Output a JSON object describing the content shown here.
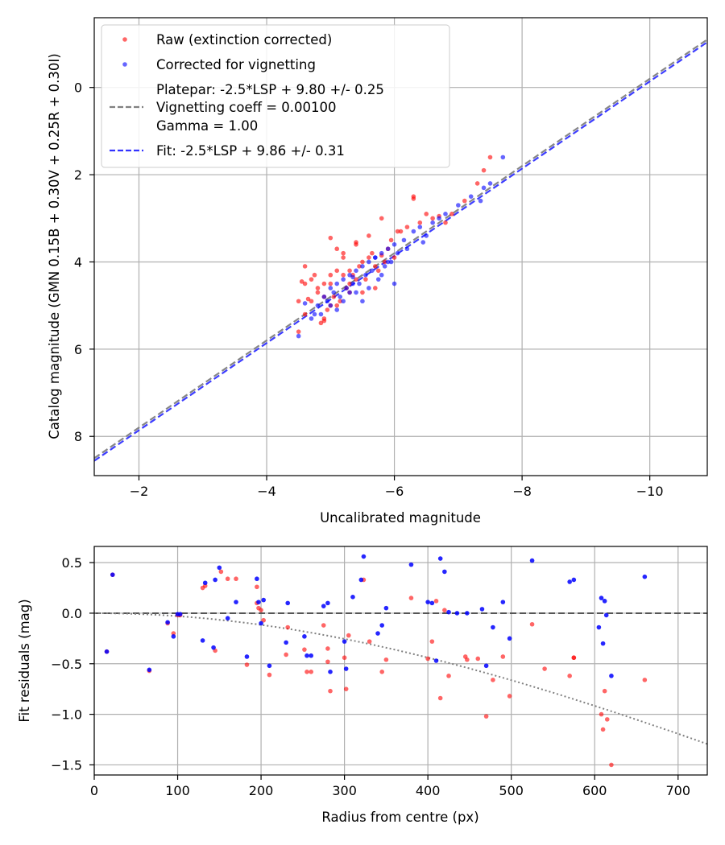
{
  "chart_data": [
    {
      "type": "scatter",
      "xlabel": "Uncalibrated magnitude",
      "ylabel": "Catalog magnitude (GMN 0.15B + 0.30V + 0.25R + 0.30I)",
      "xlim": [
        -1.3,
        -10.9
      ],
      "ylim": [
        8.9,
        -1.6
      ],
      "grid": true,
      "x_ticks": [
        -2,
        -4,
        -6,
        -8,
        -10
      ],
      "x_tick_labels": [
        "−2",
        "−4",
        "−6",
        "−8",
        "−10"
      ],
      "y_ticks": [
        0,
        2,
        4,
        6,
        8
      ],
      "y_tick_labels": [
        "0",
        "2",
        "4",
        "6",
        "8"
      ],
      "legend_location": "upper-left",
      "legend": [
        {
          "label": "Raw (extinction corrected)",
          "kind": "marker",
          "color": "#ff0000"
        },
        {
          "label": "Corrected for vignetting",
          "kind": "marker",
          "color": "#0000ff"
        },
        {
          "label": "Platepar: -2.5*LSP + 9.80 +/- 0.25",
          "kind": "line",
          "color": "#808080"
        },
        {
          "label": "Vignetting coeff = 0.00100",
          "kind": "text"
        },
        {
          "label": "Gamma = 1.00",
          "kind": "text"
        },
        {
          "label": "Fit: -2.5*LSP + 9.86 +/- 0.31",
          "kind": "line",
          "color": "#3333ff"
        }
      ],
      "lines": [
        {
          "name": "Platepar",
          "slope": 1.0,
          "intercept": 9.8,
          "color": "#808080"
        },
        {
          "name": "Fit",
          "slope": 1.0,
          "intercept": 9.86,
          "color": "#3333ff"
        }
      ],
      "series": [
        {
          "name": "Raw (extinction corrected)",
          "color": "#ff0000",
          "x": [
            -4.5,
            -4.6,
            -4.7,
            -4.8,
            -4.9,
            -5.0,
            -4.6,
            -4.7,
            -4.8,
            -4.9,
            -5.0,
            -5.1,
            -5.2,
            -5.3,
            -4.5,
            -4.6,
            -4.9,
            -5.1,
            -5.3,
            -5.4,
            -5.5,
            -5.6,
            -5.7,
            -5.2,
            -5.3,
            -5.4,
            -5.0,
            -5.1,
            -4.85,
            -4.95,
            -5.05,
            -5.15,
            -5.25,
            -5.35,
            -5.45,
            -5.55,
            -5.65,
            -5.75,
            -5.85,
            -5.95,
            -6.05,
            -5.6,
            -5.8,
            -6.1,
            -6.2,
            -6.4,
            -6.5,
            -6.6,
            -6.9,
            -7.1,
            -7.3,
            -7.4,
            -7.5,
            -6.3,
            -6.8,
            -5.7,
            -5.9,
            -6.0,
            -5.5,
            -4.75,
            -4.55,
            -4.65,
            -5.0,
            -5.2,
            -5.4,
            -5.8,
            -6.3,
            -6.7,
            -4.9
          ],
          "y": [
            5.6,
            5.2,
            4.9,
            4.7,
            4.5,
            4.3,
            4.1,
            4.4,
            4.6,
            4.8,
            5.0,
            4.2,
            4.3,
            4.5,
            4.9,
            4.5,
            5.3,
            5.0,
            4.2,
            4.4,
            4.0,
            3.9,
            4.1,
            3.8,
            4.7,
            3.6,
            4.5,
            3.7,
            5.4,
            5.1,
            4.8,
            4.9,
            4.6,
            4.3,
            4.1,
            4.4,
            3.8,
            4.2,
            4.0,
            3.5,
            3.3,
            3.4,
            3.0,
            3.3,
            3.2,
            3.1,
            2.9,
            3.0,
            2.9,
            2.6,
            2.2,
            1.9,
            1.6,
            2.5,
            3.1,
            4.6,
            3.7,
            3.9,
            4.7,
            4.3,
            4.45,
            4.85,
            3.45,
            3.9,
            3.55,
            3.85,
            2.55,
            2.95,
            5.35
          ]
        },
        {
          "name": "Corrected for vignetting",
          "color": "#0000ff",
          "x": [
            -4.5,
            -4.7,
            -4.8,
            -4.9,
            -5.0,
            -5.1,
            -5.2,
            -5.3,
            -5.4,
            -5.5,
            -5.6,
            -5.7,
            -5.8,
            -5.9,
            -6.0,
            -4.85,
            -4.95,
            -5.05,
            -5.15,
            -5.25,
            -5.35,
            -5.45,
            -5.55,
            -5.65,
            -5.75,
            -5.85,
            -5.95,
            -6.05,
            -6.15,
            -6.3,
            -6.4,
            -6.5,
            -6.6,
            -6.7,
            -6.8,
            -7.0,
            -7.2,
            -7.4,
            -7.5,
            -7.7,
            -5.0,
            -5.2,
            -5.4,
            -5.6,
            -5.8,
            -6.0,
            -5.1,
            -5.3,
            -5.5,
            -5.7,
            -5.9,
            -4.6,
            -4.75,
            -5.35,
            -6.2,
            -6.45,
            -7.35
          ],
          "y": [
            5.7,
            5.3,
            5.0,
            4.8,
            4.6,
            4.5,
            4.4,
            4.3,
            4.2,
            4.1,
            4.0,
            3.9,
            3.8,
            3.7,
            3.6,
            5.2,
            4.9,
            4.7,
            4.8,
            4.6,
            4.5,
            4.5,
            4.3,
            4.2,
            4.4,
            4.1,
            4.0,
            3.8,
            3.5,
            3.3,
            3.2,
            3.4,
            3.1,
            3.0,
            2.9,
            2.7,
            2.5,
            2.3,
            2.2,
            1.6,
            5.0,
            4.9,
            4.7,
            4.6,
            4.3,
            4.5,
            5.1,
            4.7,
            4.9,
            3.9,
            4.0,
            4.95,
            5.2,
            4.35,
            3.7,
            3.55,
            2.6
          ]
        }
      ]
    },
    {
      "type": "scatter",
      "xlabel": "Radius from centre (px)",
      "ylabel": "Fit residuals (mag)",
      "xlim": [
        0,
        735
      ],
      "ylim": [
        -1.6,
        0.66
      ],
      "grid": true,
      "x_ticks": [
        0,
        100,
        200,
        300,
        400,
        500,
        600,
        700
      ],
      "x_tick_labels": [
        "0",
        "100",
        "200",
        "300",
        "400",
        "500",
        "600",
        "700"
      ],
      "y_ticks": [
        0.5,
        0.0,
        -0.5,
        -1.0,
        -1.5
      ],
      "y_tick_labels": [
        "0.5",
        "0.0",
        "−0.5",
        "−1.0",
        "−1.5"
      ],
      "lines": [
        {
          "name": "zero",
          "kind": "dashed",
          "color": "#555555",
          "y": 0.0
        },
        {
          "name": "vignetting model",
          "kind": "dotted",
          "color": "#808080",
          "coeff": 0.001
        }
      ],
      "series": [
        {
          "name": "Raw (extinction corrected)",
          "color": "#ff0000",
          "x": [
            15,
            22,
            66,
            88,
            95,
            100,
            103,
            130,
            133,
            145,
            152,
            160,
            170,
            183,
            195,
            195,
            197,
            200,
            203,
            210,
            230,
            232,
            252,
            255,
            260,
            275,
            280,
            283,
            302,
            323,
            330,
            350,
            380,
            405,
            415,
            420,
            425,
            445,
            447,
            470,
            478,
            490,
            498,
            525,
            575,
            608,
            610,
            612,
            615,
            620,
            660,
            570,
            575,
            280,
            300,
            305,
            345,
            400,
            410,
            460,
            540
          ],
          "x2": [],
          "y": [
            -0.38,
            0.38,
            -0.57,
            -0.1,
            -0.2,
            -0.02,
            -0.02,
            0.25,
            0.27,
            -0.37,
            0.41,
            0.34,
            0.34,
            -0.51,
            0.26,
            0.1,
            0.05,
            0.03,
            -0.07,
            -0.61,
            -0.41,
            -0.14,
            -0.36,
            -0.58,
            -0.58,
            -0.12,
            -0.48,
            -0.77,
            -0.75,
            0.33,
            -0.28,
            -0.46,
            0.15,
            -0.28,
            -0.84,
            0.03,
            -0.62,
            -0.43,
            -0.46,
            -1.02,
            -0.66,
            -0.43,
            -0.82,
            -0.11,
            -0.44,
            -1.0,
            -1.15,
            -0.77,
            -1.05,
            -1.5,
            -0.66,
            -0.62,
            -0.44,
            -0.35,
            -0.44,
            -0.22,
            -0.58,
            -0.45,
            0.12,
            -0.45,
            -0.55
          ]
        },
        {
          "name": "Corrected for vignetting",
          "color": "#0000ff",
          "x": [
            15,
            22,
            66,
            88,
            95,
            100,
            103,
            130,
            133,
            143,
            145,
            150,
            160,
            170,
            183,
            195,
            197,
            200,
            203,
            210,
            230,
            232,
            252,
            255,
            260,
            275,
            280,
            283,
            302,
            310,
            320,
            323,
            350,
            380,
            400,
            405,
            410,
            415,
            420,
            425,
            435,
            447,
            465,
            470,
            478,
            490,
            498,
            525,
            570,
            575,
            605,
            608,
            610,
            612,
            614,
            620,
            660,
            300,
            340,
            345
          ],
          "y": [
            -0.38,
            0.38,
            -0.56,
            -0.09,
            -0.23,
            -0.01,
            -0.01,
            -0.27,
            0.3,
            -0.34,
            0.33,
            0.45,
            -0.05,
            0.11,
            -0.43,
            0.34,
            0.11,
            -0.1,
            0.13,
            -0.52,
            -0.29,
            0.1,
            -0.23,
            -0.42,
            -0.42,
            0.07,
            0.1,
            -0.58,
            -0.55,
            0.16,
            0.33,
            0.56,
            0.05,
            0.48,
            0.11,
            0.1,
            -0.47,
            0.54,
            0.41,
            0.01,
            0.0,
            0.0,
            0.04,
            -0.52,
            -0.14,
            0.11,
            -0.25,
            0.52,
            0.31,
            0.33,
            -0.14,
            0.15,
            -0.3,
            0.12,
            -0.02,
            -0.62,
            0.36,
            -0.28,
            -0.2,
            -0.12
          ]
        }
      ]
    }
  ]
}
